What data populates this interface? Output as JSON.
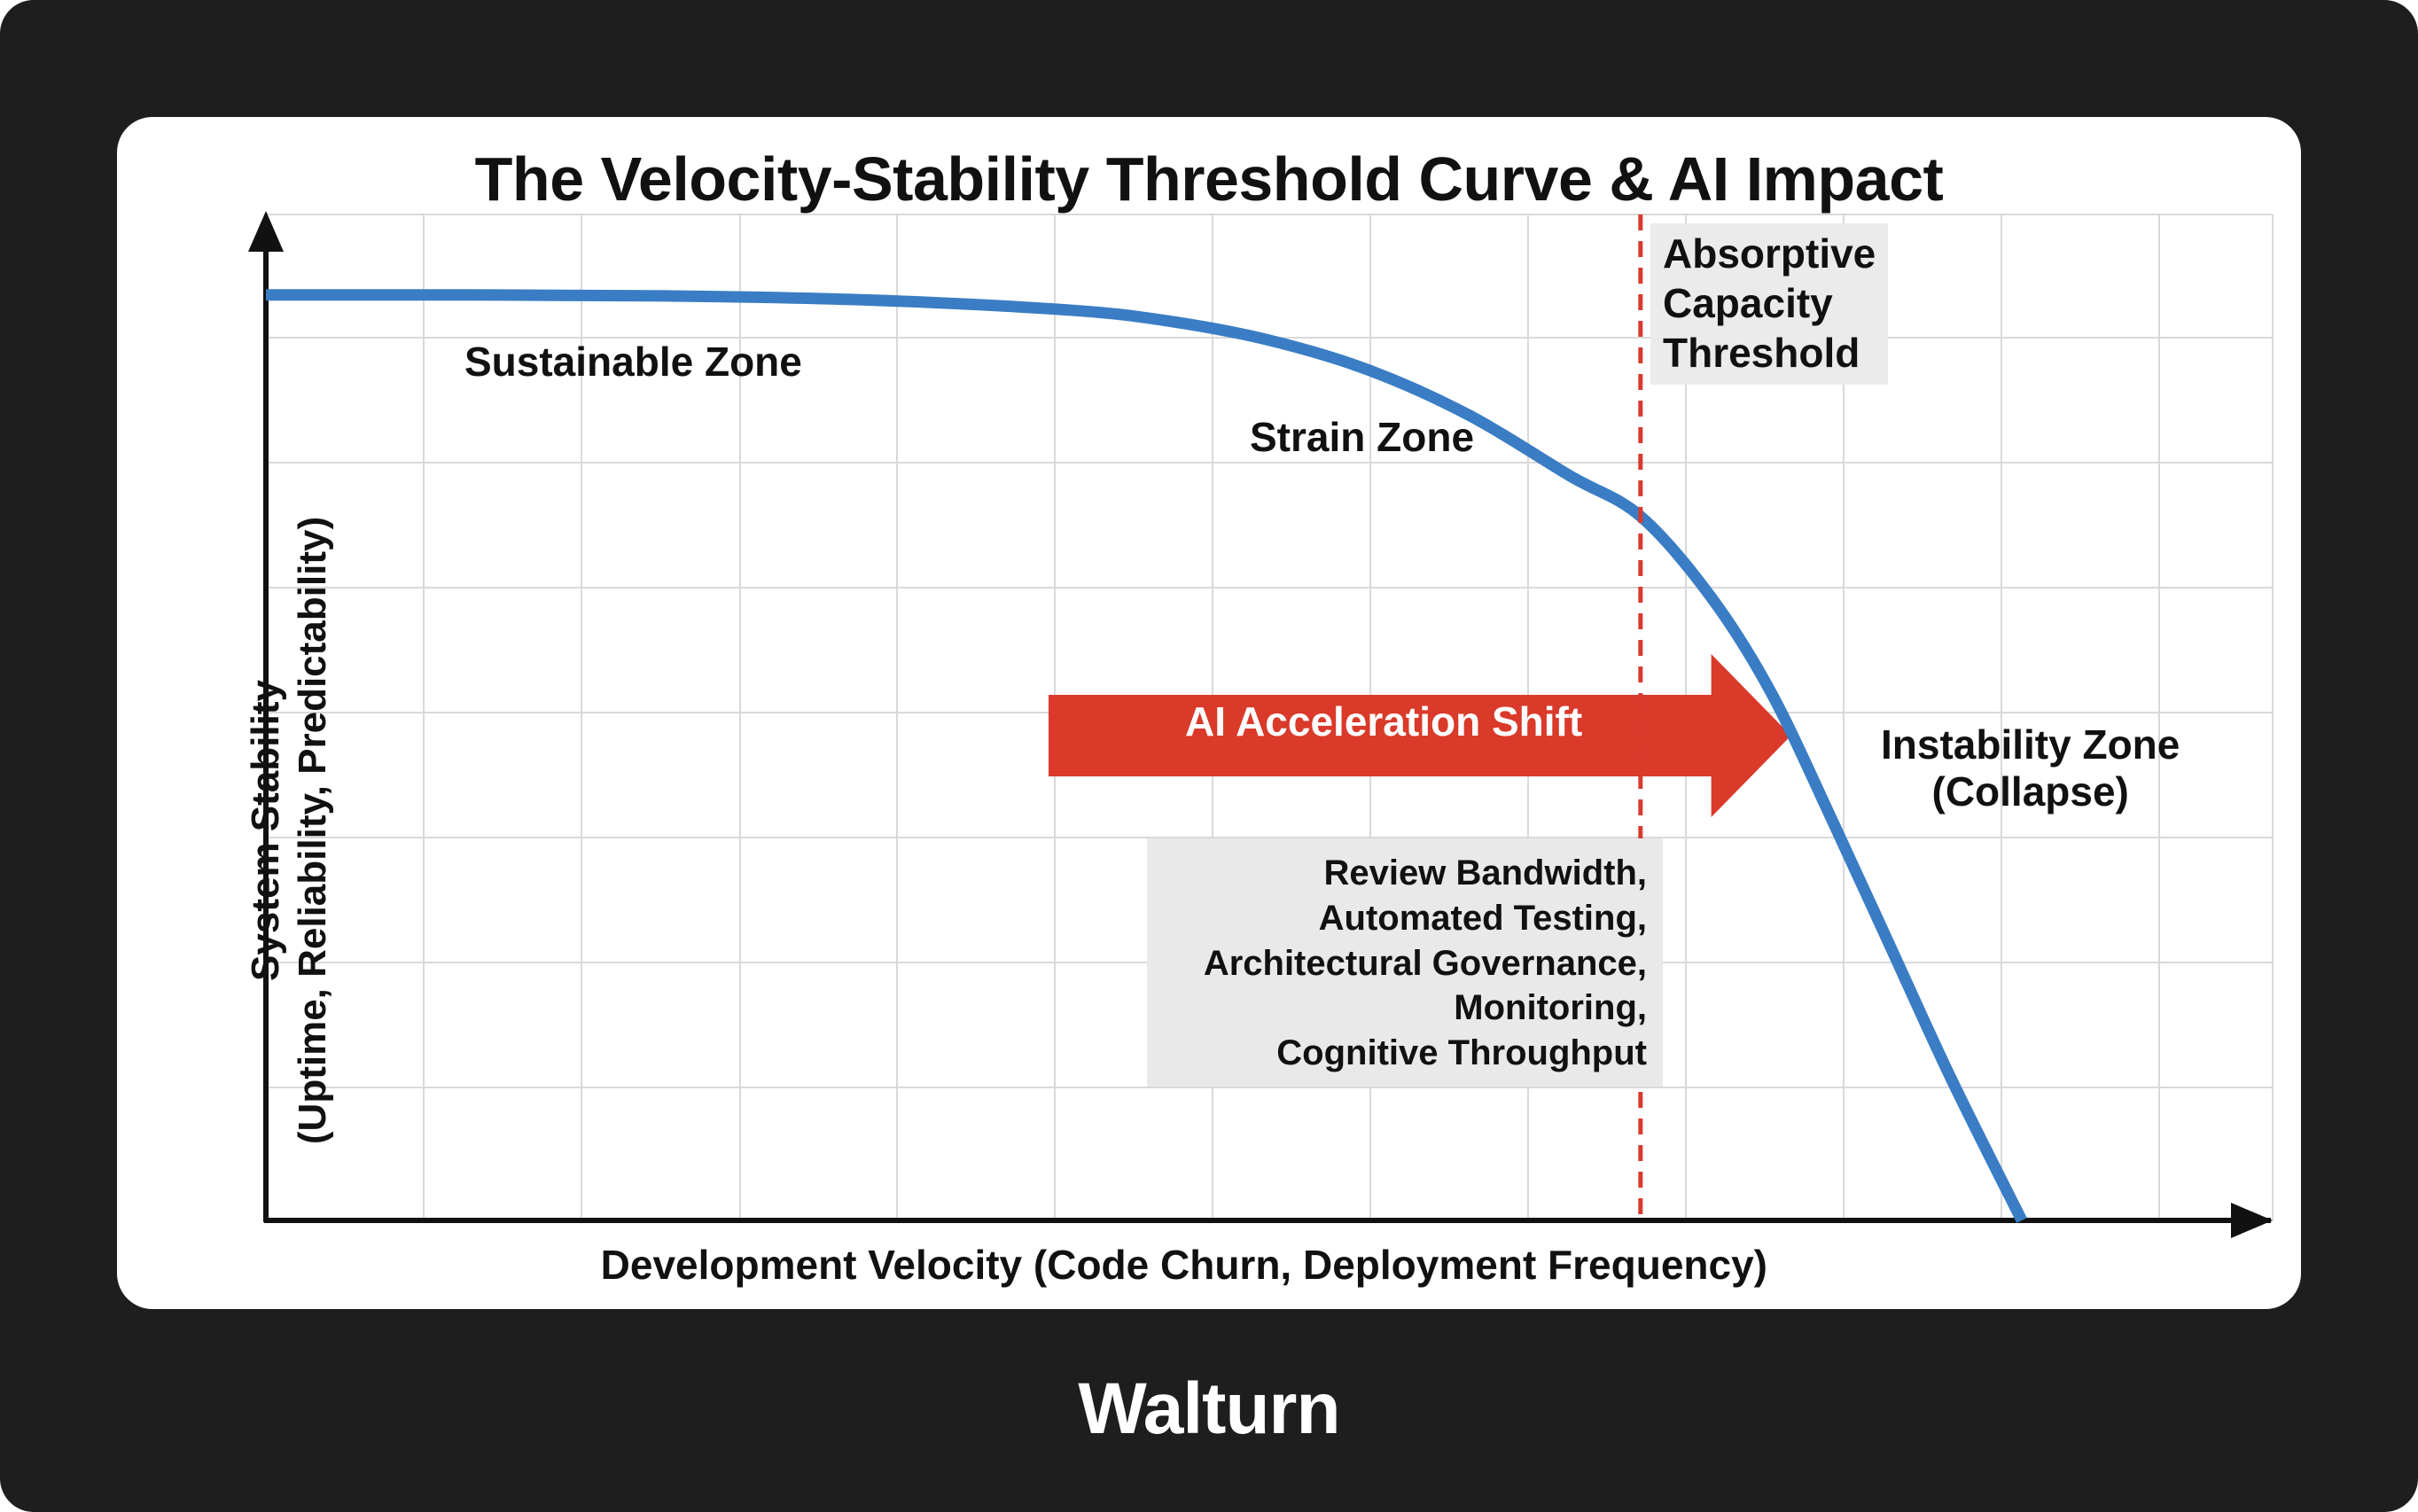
{
  "chart_data": {
    "type": "line",
    "title": "The Velocity-Stability Threshold Curve & AI Impact",
    "xlabel": "Development Velocity (Code Churn, Deployment Frequency)",
    "ylabel_line1": "System Stability",
    "ylabel_line2": "(Uptime, Reliability, Predictability)",
    "xlim": [
      0,
      100
    ],
    "ylim": [
      0,
      100
    ],
    "grid": true,
    "series": [
      {
        "name": "Velocity-Stability Curve",
        "color": "#3a7dc4",
        "x": [
          0,
          10,
          20,
          30,
          40,
          45,
          50,
          55,
          60,
          65,
          68.5,
          72,
          75,
          78,
          81,
          84,
          87.5
        ],
        "y": [
          92,
          92,
          91.9,
          91.5,
          90.5,
          89.4,
          87.5,
          84.5,
          80,
          74,
          70,
          62,
          52.5,
          40,
          27,
          14,
          0
        ]
      }
    ],
    "threshold": {
      "x": 68.5,
      "color": "#d83a2e",
      "label_lines": [
        "Absorptive",
        "Capacity",
        "Threshold"
      ]
    },
    "annotations": {
      "sustainable": "Sustainable Zone",
      "strain": "Strain Zone",
      "instability_line1": "Instability Zone",
      "instability_line2": "(Collapse)",
      "factors": [
        "Review Bandwidth,",
        "Automated Testing,",
        "Architectural Governance,",
        "Monitoring,",
        "Cognitive Throughput"
      ]
    },
    "shift_arrow": {
      "label": "AI Acceleration Shift",
      "color": "#d93a2a",
      "x_start": 39,
      "x_end": 76
    }
  },
  "brand": "Walturn"
}
